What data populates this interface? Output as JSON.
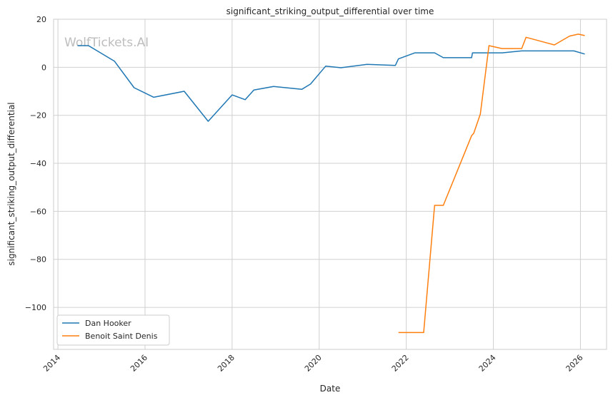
{
  "watermark": "WolfTickets.AI",
  "chart_data": {
    "type": "line",
    "title": "significant_striking_output_differential over time",
    "xlabel": "Date",
    "ylabel": "significant_striking_output_differential",
    "xlim": [
      2013.9,
      2026.6
    ],
    "ylim": [
      -117.5,
      20
    ],
    "x_ticks": [
      "2014",
      "2016",
      "2018",
      "2020",
      "2022",
      "2024",
      "2026"
    ],
    "y_ticks": [
      "20",
      "0",
      "−20",
      "−40",
      "−60",
      "−80",
      "−100"
    ],
    "grid": true,
    "legend_position": "lower-left",
    "series": [
      {
        "name": "Dan Hooker",
        "color": "#1f77b4",
        "x": [
          2014.45,
          2014.7,
          2015.3,
          2015.75,
          2016.2,
          2016.9,
          2017.45,
          2018.0,
          2018.3,
          2018.5,
          2018.95,
          2019.6,
          2019.8,
          2020.15,
          2020.5,
          2021.1,
          2021.75,
          2021.82,
          2022.2,
          2022.65,
          2022.85,
          2023.5,
          2023.52,
          2024.2,
          2024.65,
          2025.85,
          2026.1
        ],
        "y": [
          9,
          9,
          2.5,
          -8.5,
          -12.5,
          -10,
          -22.5,
          -11.5,
          -13.5,
          -9.5,
          -8,
          -9.2,
          -7,
          0.5,
          -0.2,
          1.2,
          0.8,
          3.5,
          6,
          6,
          4,
          4,
          6,
          6,
          6.8,
          6.8,
          5.5
        ]
      },
      {
        "name": "Benoit Saint Denis",
        "color": "#ff7f0e",
        "x": [
          2021.82,
          2022.4,
          2022.65,
          2022.85,
          2023.5,
          2023.55,
          2023.7,
          2023.9,
          2024.2,
          2024.65,
          2024.75,
          2025.4,
          2025.75,
          2025.95,
          2026.1
        ],
        "y": [
          -110.5,
          -110.5,
          -57.5,
          -57.5,
          -28.5,
          -27.5,
          -19.5,
          9,
          7.8,
          7.8,
          12.5,
          9.3,
          13,
          13.8,
          13.2
        ]
      }
    ]
  }
}
